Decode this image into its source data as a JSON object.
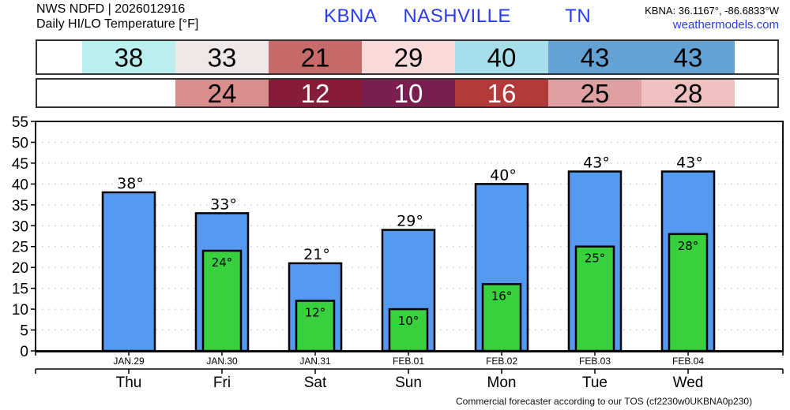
{
  "header": {
    "line1": "NWS NDFD | 2026012916",
    "line2": "Daily HI/LO Temperature [°F]",
    "location": "KBNA  NASHVILLE    TN",
    "coordinates": "KBNA: 36.1167°, -86.6833°W",
    "site": "weathermodels.com"
  },
  "footer": "Commercial forecaster according to our TOS (cf2230w0UKBNA0p230)",
  "tables": {
    "hi_colors": [
      "#bbeeee",
      "#efe8e8",
      "#c66a6a",
      "#f8dada",
      "#a6dfea",
      "#64a2d4",
      "#64a2d4"
    ],
    "lo_colors": [
      "#ffffff",
      "#d98e8e",
      "#861c3a",
      "#7a1e50",
      "#b33a3a",
      "#dea0a0",
      "#efc0c0"
    ],
    "lo_text_colors": [
      "#000",
      "#000",
      "#fff",
      "#fff",
      "#fff",
      "#000",
      "#000"
    ]
  },
  "chart_data": {
    "type": "bar",
    "categories": [
      "JAN.29",
      "JAN.30",
      "JAN.31",
      "FEB.01",
      "FEB.02",
      "FEB.03",
      "FEB.04"
    ],
    "day_labels": [
      "Thu",
      "Fri",
      "Sat",
      "Sun",
      "Mon",
      "Tue",
      "Wed"
    ],
    "series": [
      {
        "name": "HI",
        "values": [
          38,
          33,
          21,
          29,
          40,
          43,
          43
        ],
        "color": "#5599f0"
      },
      {
        "name": "LO",
        "values": [
          null,
          24,
          12,
          10,
          16,
          25,
          28
        ],
        "color": "#38d03c"
      }
    ],
    "ylim": [
      0,
      55
    ],
    "yticks": [
      0,
      5,
      10,
      15,
      20,
      25,
      30,
      35,
      40,
      45,
      50,
      55
    ],
    "grid": true,
    "unit_suffix": "°"
  }
}
